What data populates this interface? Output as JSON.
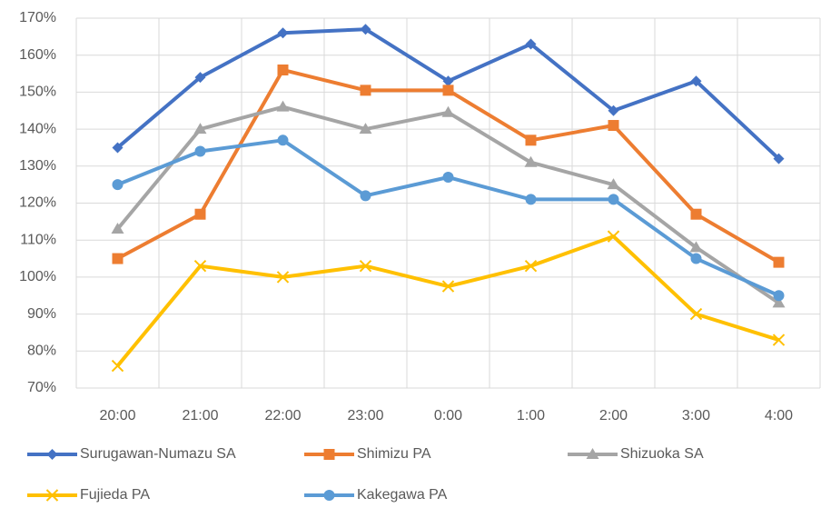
{
  "chart_data": {
    "type": "line",
    "categories": [
      "20:00",
      "21:00",
      "22:00",
      "23:00",
      "0:00",
      "1:00",
      "2:00",
      "3:00",
      "4:00"
    ],
    "series": [
      {
        "name": "Surugawan-Numazu SA",
        "color": "#4472c4",
        "marker": "diamond",
        "values": [
          135,
          154,
          166,
          167,
          153,
          163,
          145,
          153,
          132
        ]
      },
      {
        "name": "Shimizu PA",
        "color": "#ed7d31",
        "marker": "square",
        "values": [
          105,
          117,
          156,
          150.5,
          150.5,
          137,
          141,
          117,
          104
        ]
      },
      {
        "name": "Shizuoka SA",
        "color": "#a5a5a5",
        "marker": "triangle",
        "values": [
          113,
          140,
          146,
          140,
          144.5,
          131,
          125,
          108,
          93
        ]
      },
      {
        "name": "Fujieda PA",
        "color": "#ffc000",
        "marker": "x",
        "values": [
          76,
          103,
          100,
          103,
          97.5,
          103,
          111,
          90,
          83
        ]
      },
      {
        "name": "Kakegawa PA",
        "color": "#5b9bd5",
        "marker": "circle",
        "values": [
          125,
          134,
          137,
          122,
          127,
          121,
          121,
          105,
          95
        ]
      }
    ],
    "ylim": [
      70,
      170
    ],
    "yticks": [
      {
        "value": 70,
        "label": "70%"
      },
      {
        "value": 80,
        "label": "80%"
      },
      {
        "value": 90,
        "label": "90%"
      },
      {
        "value": 100,
        "label": "100%"
      },
      {
        "value": 110,
        "label": "110%"
      },
      {
        "value": 120,
        "label": "120%"
      },
      {
        "value": 130,
        "label": "130%"
      },
      {
        "value": 140,
        "label": "140%"
      },
      {
        "value": 150,
        "label": "150%"
      },
      {
        "value": 160,
        "label": "160%"
      },
      {
        "value": 170,
        "label": "170%"
      }
    ],
    "grid": true,
    "legend": "bottom"
  }
}
